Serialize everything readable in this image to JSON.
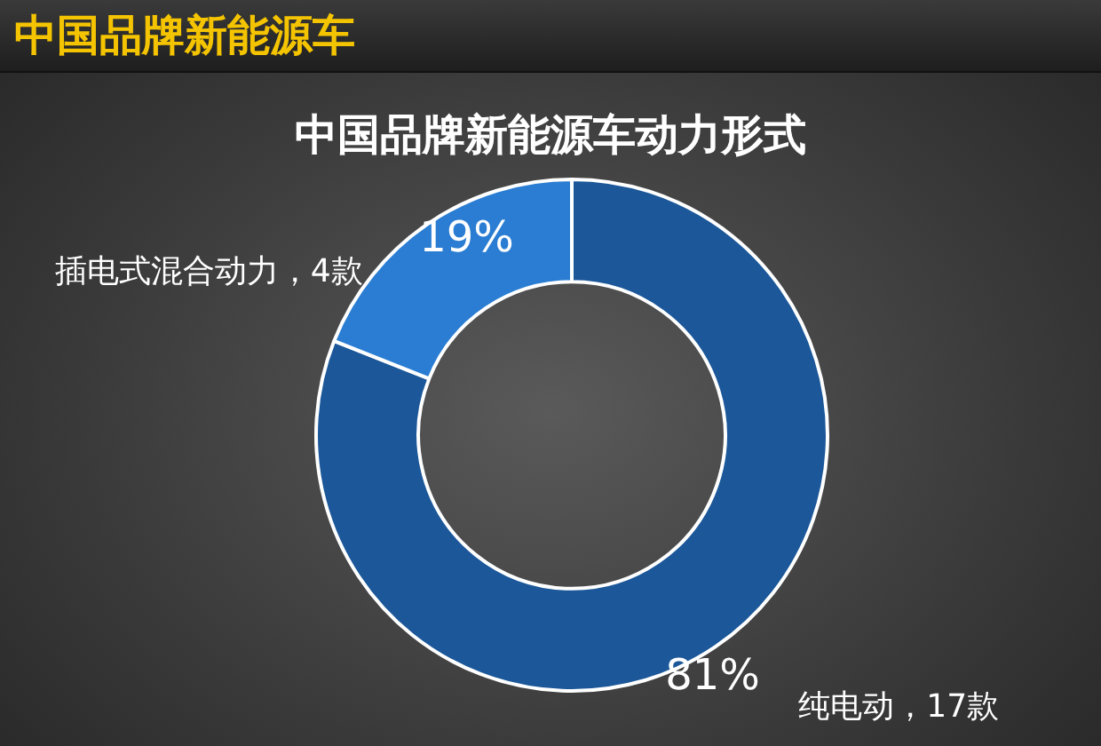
{
  "chart_data": {
    "type": "donut",
    "title": "中国品牌新能源车",
    "subtitle": "中国品牌新能源车动力形式",
    "categories": [
      "纯电动，17款",
      "插电式混合动力，4款"
    ],
    "values": [
      81,
      19
    ],
    "value_labels": [
      "81%",
      "19%"
    ],
    "colors": [
      "#1b5799",
      "#2a7dd2"
    ]
  }
}
